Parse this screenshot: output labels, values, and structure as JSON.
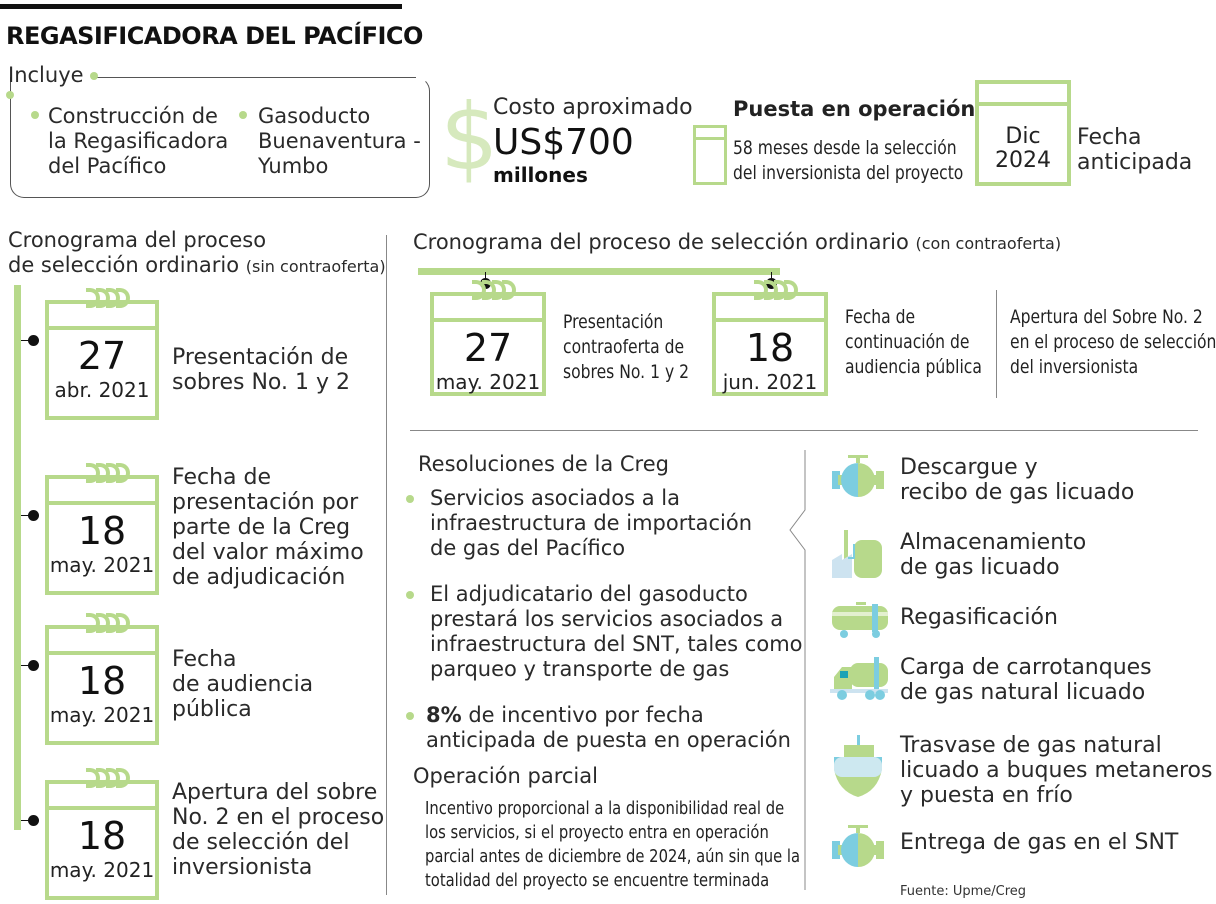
{
  "title": "REGASIFICADORA DEL PACÍFICO",
  "incluye": {
    "label": "Incluye",
    "items": [
      [
        "Construcción de",
        "la Regasificadora",
        "del Pacífico"
      ],
      [
        "Gasoducto",
        "Buenaventura -",
        "Yumbo"
      ]
    ]
  },
  "costo": {
    "label": "Costo aproximado",
    "amount": "US$700",
    "unit": "millones",
    "icon": "dollar-icon"
  },
  "puesta": {
    "title": "Puesta en operación",
    "text": [
      "58 meses desde la selección",
      "del inversionista del proyecto"
    ]
  },
  "fecha": {
    "month": "Dic",
    "year": "2024",
    "label": [
      "Fecha",
      "anticipada"
    ]
  },
  "left": {
    "heading": [
      "Cronograma del proceso",
      "de selección ordinario"
    ],
    "note": "(sin contraoferta)",
    "events": [
      {
        "day": "27",
        "month": "abr. 2021",
        "text": [
          "Presentación de",
          "sobres No. 1 y 2"
        ]
      },
      {
        "day": "18",
        "month": "may. 2021",
        "text": [
          "Fecha de",
          "presentación por",
          "parte de la Creg",
          "del valor máximo",
          "de adjudicación"
        ]
      },
      {
        "day": "18",
        "month": "may. 2021",
        "text": [
          "Fecha",
          "de audiencia",
          "pública"
        ]
      },
      {
        "day": "18",
        "month": "may. 2021",
        "text": [
          "Apertura del sobre",
          "No. 2 en el proceso",
          "de selección del",
          "inversionista"
        ]
      }
    ]
  },
  "right": {
    "heading": "Cronograma del proceso de selección ordinario",
    "note": "(con contraoferta)",
    "events": [
      {
        "day": "27",
        "month": "may. 2021",
        "text": [
          "Presentación",
          "contraoferta de",
          "sobres No. 1 y 2"
        ]
      },
      {
        "day": "18",
        "month": "jun. 2021",
        "text": [
          "Fecha de",
          "continuación de",
          "audiencia pública"
        ]
      }
    ],
    "extra": [
      "Apertura del Sobre No. 2",
      "en el proceso de selección",
      "del inversionista"
    ]
  },
  "resoluciones": {
    "heading": "Resoluciones de la Creg",
    "items": [
      [
        "Servicios asociados a la",
        "infraestructura de importación",
        "de gas del Pacífico"
      ],
      [
        "El adjudicatario del gasoducto",
        "prestará los servicios asociados a",
        "infraestructura del SNT, tales como",
        "parqueo y transporte de gas"
      ]
    ],
    "incentive_bold": "8%",
    "incentive": [
      " de incentivo por fecha",
      "anticipada de puesta en operación"
    ]
  },
  "parcial": {
    "heading": "Operación parcial",
    "text": [
      "Incentivo proporcional a la disponibilidad real de",
      "los servicios, si el proyecto entra en operación",
      "parcial antes de diciembre de 2024, aún sin que la",
      "totalidad del proyecto se encuentre terminada"
    ]
  },
  "servicios": [
    {
      "icon": "valve-icon",
      "text": [
        "Descargue y",
        "recibo de gas licuado"
      ]
    },
    {
      "icon": "storage-plant-icon",
      "text": [
        "Almacenamiento",
        "de gas licuado"
      ]
    },
    {
      "icon": "tank-car-icon",
      "text": [
        "Regasificación"
      ]
    },
    {
      "icon": "tanker-truck-icon",
      "text": [
        "Carga de carrotanques",
        "de gas natural licuado"
      ]
    },
    {
      "icon": "ship-icon",
      "text": [
        "Trasvase de gas natural",
        "licuado a buques metaneros",
        "y puesta en frío"
      ]
    },
    {
      "icon": "valve-icon",
      "text": [
        "Entrega de gas en el SNT"
      ]
    }
  ],
  "source": "Fuente: Upme/Creg",
  "colors": {
    "green": "#b7d98b",
    "blue": "#7ccde0"
  }
}
